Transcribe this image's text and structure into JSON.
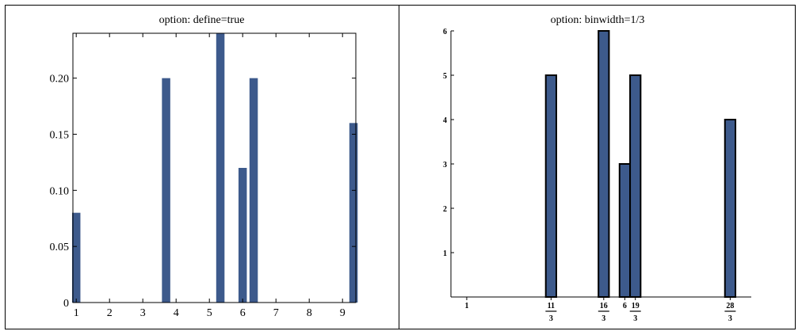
{
  "colors": {
    "bar": "#3d5a8c",
    "edge": "#000000",
    "axis": "#000000"
  },
  "chart_data": [
    {
      "type": "bar",
      "title": "option: define=true",
      "xlabel": "",
      "ylabel": "",
      "xlim": [
        0.9,
        9.4
      ],
      "ylim": [
        0,
        0.24
      ],
      "x": [
        1,
        3.7,
        5.33,
        6.0,
        6.33,
        9.33
      ],
      "values": [
        0.08,
        0.2,
        0.24,
        0.12,
        0.2,
        0.16
      ],
      "bar_width": 0.25,
      "frame": "box",
      "xticks": [
        1,
        2,
        3,
        4,
        5,
        6,
        7,
        8,
        9
      ],
      "xtick_labels": [
        "1",
        "2",
        "3",
        "4",
        "5",
        "6",
        "7",
        "8",
        "9"
      ],
      "yticks": [
        0,
        0.05,
        0.1,
        0.15,
        0.2
      ],
      "ytick_labels": [
        "0",
        "0.05",
        "0.10",
        "0.15",
        "0.20"
      ],
      "grid": false
    },
    {
      "type": "bar",
      "title": "option: binwidth=1/3",
      "xlabel": "",
      "ylabel": "",
      "xlim": [
        0.5,
        10.0
      ],
      "ylim": [
        0,
        6
      ],
      "x": [
        3.667,
        5.333,
        6.0,
        6.333,
        9.333
      ],
      "values": [
        5,
        6,
        3,
        5,
        4
      ],
      "bar_width": 0.333,
      "frame": "axes",
      "xticks": [
        1,
        3.667,
        5.333,
        6,
        6.333,
        9.333
      ],
      "xtick_labels": [
        {
          "whole": "1"
        },
        {
          "num": "11",
          "den": "3"
        },
        {
          "num": "16",
          "den": "3"
        },
        {
          "whole": "6"
        },
        {
          "num": "19",
          "den": "3"
        },
        {
          "num": "28",
          "den": "3"
        }
      ],
      "yticks": [
        1,
        2,
        3,
        4,
        5,
        6
      ],
      "ytick_labels": [
        "1",
        "2",
        "3",
        "4",
        "5",
        "6"
      ],
      "grid": false
    }
  ]
}
